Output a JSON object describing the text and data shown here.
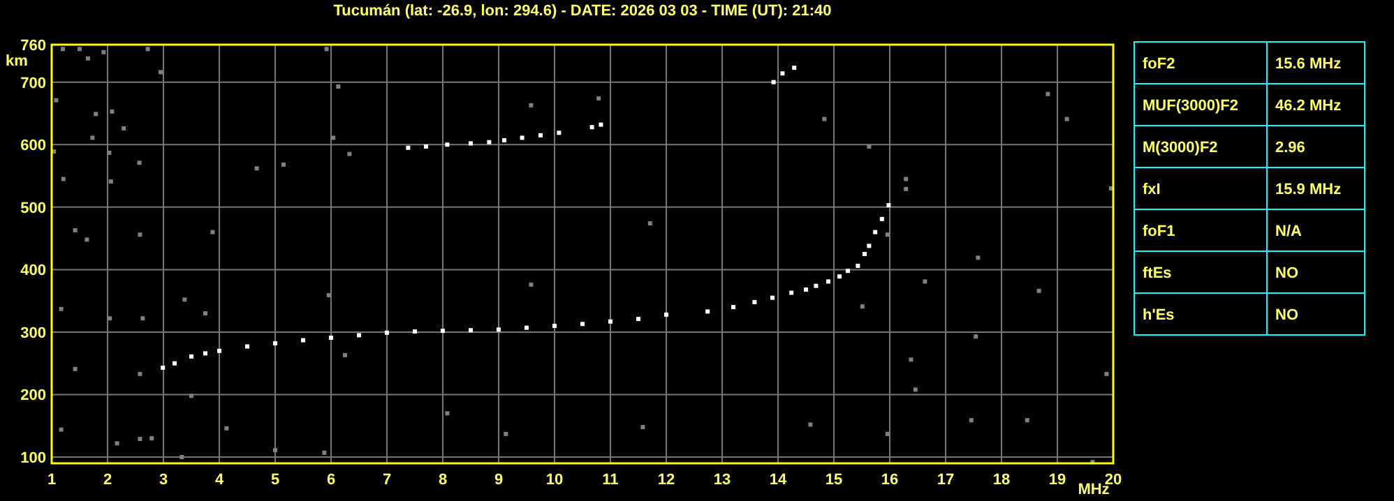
{
  "chart_data": [
    {
      "type": "scatter",
      "title": "Tucumán (lat: -26.9, lon: 294.6) - DATE: 2026 03 03 - TIME (UT): 21:40",
      "xlabel": "MHz",
      "ylabel": "km",
      "xlim": [
        1,
        20
      ],
      "ylim": [
        90,
        760
      ],
      "xticks": [
        1,
        2,
        3,
        4,
        5,
        6,
        7,
        8,
        9,
        10,
        11,
        12,
        13,
        14,
        15,
        16,
        17,
        18,
        19,
        20
      ],
      "yticks": [
        100,
        200,
        300,
        400,
        500,
        600,
        700,
        760
      ],
      "grid": true,
      "marker": "square",
      "series": [
        {
          "color": "#ffffff",
          "x": [
            2.99,
            3.2,
            3.5,
            3.75,
            4,
            4.5,
            5,
            5.5,
            6,
            6.5,
            7,
            7.5,
            8,
            8.5,
            9,
            9.5,
            10,
            10.5,
            11,
            11.5,
            12,
            12.74,
            13.2,
            13.58,
            13.9,
            14.24,
            14.5,
            14.68,
            14.9,
            15.1,
            15.25,
            15.43
          ],
          "values": [
            243,
            250,
            261,
            266,
            270,
            277,
            282,
            287,
            291,
            295,
            299,
            301,
            302,
            303,
            304,
            307,
            310,
            313,
            317,
            321,
            328,
            333,
            340,
            348,
            355,
            363,
            368,
            374,
            381,
            389,
            398,
            406
          ]
        },
        {
          "color": "#ffffff",
          "x": [
            15.55,
            15.63,
            15.74,
            15.86,
            15.98
          ],
          "values": [
            425,
            438,
            460,
            481,
            503
          ]
        },
        {
          "color": "#ffffff",
          "x": [
            7.38,
            7.7,
            8.08,
            8.5,
            8.83,
            9.1,
            9.42,
            9.75,
            10.08,
            10.67,
            10.83,
            13.92,
            14.08,
            14.29
          ],
          "values": [
            595,
            597,
            600,
            602,
            604,
            607,
            611,
            615,
            619,
            628,
            632,
            700,
            714,
            723
          ]
        },
        {
          "color": "#808080",
          "x": [
            1.2,
            1.5,
            1.65,
            1.93,
            2.72,
            2.95,
            1.08,
            1.79,
            2.08,
            2.29,
            1.73,
            1.04,
            2.03,
            2.57,
            1.21,
            2.06,
            1.42,
            1.63,
            2.58,
            3.88,
            1.17,
            2.04,
            2.63,
            3.38,
            3.75,
            1.42,
            2.58,
            3.5,
            1.17,
            2.17,
            2.58,
            2.79,
            4.13,
            3.33,
            5.0,
            5.88,
            5.92,
            6.13,
            6.04,
            6.33,
            4.67,
            5.15,
            5.96,
            6.25,
            9.58,
            10.79,
            11.71,
            9.58,
            11.58,
            9.13,
            8.08,
            16.29,
            16.29,
            18.83,
            16.63,
            15.51,
            15.96,
            17.46,
            19.63,
            19.96,
            17.58,
            16.38,
            18.46,
            14.83,
            19.17,
            14.58,
            18.67,
            16.46,
            15.96,
            19.88,
            17.54,
            15.63
          ],
          "values": [
            753,
            753,
            738,
            748,
            753,
            716,
            671,
            649,
            653,
            626,
            611,
            589,
            587,
            571,
            545,
            541,
            463,
            448,
            456,
            460,
            337,
            322,
            322,
            352,
            330,
            241,
            233,
            198,
            144,
            122,
            129,
            130,
            146,
            100,
            111,
            107,
            753,
            693,
            611,
            585,
            562,
            568,
            359,
            263,
            663,
            674,
            474,
            376,
            148,
            137,
            170,
            545,
            529,
            681,
            381,
            341,
            456,
            159,
            92,
            530,
            419,
            256,
            159,
            641,
            641,
            152,
            366,
            208,
            137,
            233,
            293,
            597
          ]
        }
      ]
    },
    {
      "type": "other",
      "annotations": [
        "foF2",
        "15.6 MHz",
        "MUF(3000)F2",
        "46.2 MHz",
        "M(3000)F2",
        "2.96",
        "fxI",
        "15.9 MHz",
        "foF1",
        "N/A",
        "ftEs",
        "NO",
        "h'Es",
        "NO"
      ]
    }
  ]
}
